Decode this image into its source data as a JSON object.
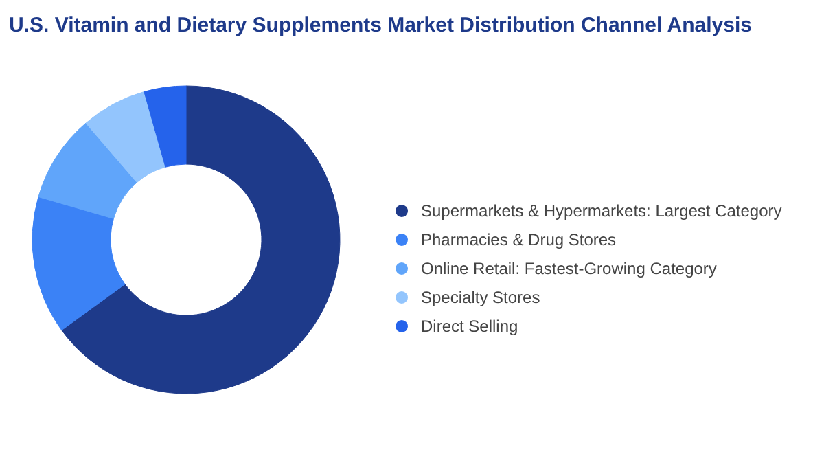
{
  "chart_data": {
    "type": "donut",
    "title": "U.S. Vitamin and Dietary Supplements Market Distribution Channel Analysis",
    "categories": [
      "Supermarkets & Hypermarkets:  Largest Category",
      "Pharmacies & Drug Stores",
      "Online Retail:  Fastest-Growing Category",
      "Specialty Stores",
      "Direct Selling"
    ],
    "values": [
      65,
      14.5,
      9.2,
      6.9,
      4.4
    ],
    "colors": [
      "#1e3a8a",
      "#3b82f6",
      "#60a5fa",
      "#93c5fd",
      "#2563eb"
    ],
    "legend": "right"
  }
}
